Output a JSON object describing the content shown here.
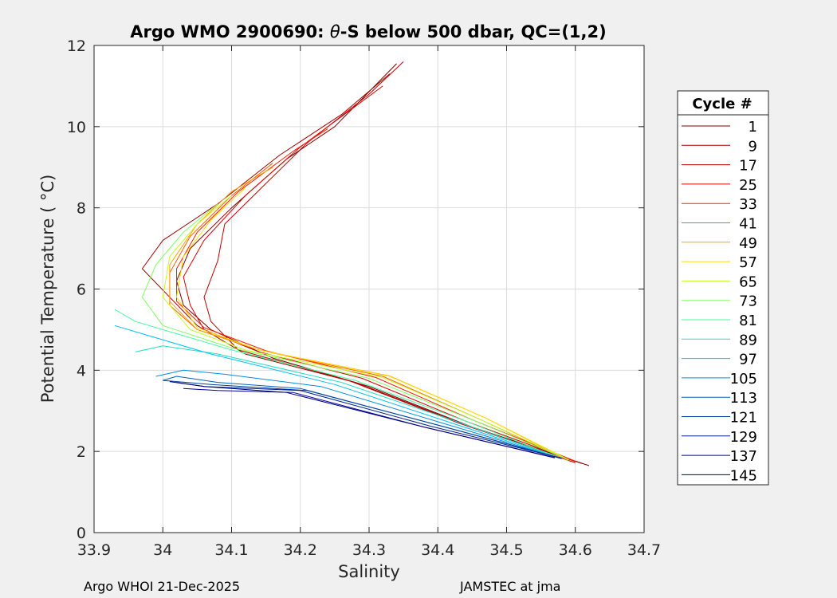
{
  "chart_data": {
    "type": "line",
    "title_prefix": "Argo WMO 2900690: ",
    "title_symbol": "θ",
    "title_suffix": "-S below 500 dbar,  QC=(1,2)",
    "xlabel": "Salinity",
    "ylabel": "Potential Temperature ( °C)",
    "xlim": [
      33.9,
      34.7
    ],
    "ylim": [
      0,
      12
    ],
    "xticks": [
      33.9,
      34.0,
      34.1,
      34.2,
      34.3,
      34.4,
      34.5,
      34.6,
      34.7
    ],
    "xtick_labels": [
      "33.9",
      "34",
      "34.1",
      "34.2",
      "34.3",
      "34.4",
      "34.5",
      "34.6",
      "34.7"
    ],
    "yticks": [
      0,
      2,
      4,
      6,
      8,
      10,
      12
    ],
    "ytick_labels": [
      "0",
      "2",
      "4",
      "6",
      "8",
      "10",
      "12"
    ],
    "grid": true,
    "legend_title": "Cycle #",
    "legend_position": "right-outside",
    "legend_entries": [
      {
        "label": "1",
        "color": "#800000"
      },
      {
        "label": "9",
        "color": "#a00000"
      },
      {
        "label": "17",
        "color": "#c00000"
      },
      {
        "label": "25",
        "color": "#e00000"
      },
      {
        "label": "33",
        "color": "#ff2000"
      },
      {
        "label": "41",
        "color": "#ff6000"
      },
      {
        "label": "49",
        "color": "#ffa000"
      },
      {
        "label": "57",
        "color": "#ffe000"
      },
      {
        "label": "65",
        "color": "#c0ff20"
      },
      {
        "label": "73",
        "color": "#80ff60"
      },
      {
        "label": "81",
        "color": "#40ffa0"
      },
      {
        "label": "89",
        "color": "#20e0c0"
      },
      {
        "label": "97",
        "color": "#00c0ff"
      },
      {
        "label": "105",
        "color": "#0090e0"
      },
      {
        "label": "113",
        "color": "#0060c0"
      },
      {
        "label": "121",
        "color": "#0040a0"
      },
      {
        "label": "129",
        "color": "#002090"
      },
      {
        "label": "137",
        "color": "#0000a0"
      },
      {
        "label": "145",
        "color": "#000080"
      }
    ],
    "series": [
      {
        "cycle": 1,
        "color": "#800000",
        "points": [
          [
            34.62,
            1.65
          ],
          [
            34.45,
            2.6
          ],
          [
            34.3,
            3.6
          ],
          [
            34.16,
            4.3
          ],
          [
            34.07,
            5.0
          ],
          [
            34.03,
            5.6
          ],
          [
            34.02,
            6.2
          ],
          [
            34.04,
            7.0
          ],
          [
            34.1,
            8.0
          ],
          [
            34.18,
            9.2
          ],
          [
            34.25,
            10.0
          ],
          [
            34.34,
            11.55
          ]
        ]
      },
      {
        "cycle": 9,
        "color": "#a00000",
        "points": [
          [
            34.61,
            1.7
          ],
          [
            34.44,
            2.65
          ],
          [
            34.28,
            3.7
          ],
          [
            34.12,
            4.4
          ],
          [
            34.05,
            5.1
          ],
          [
            34.01,
            5.8
          ],
          [
            33.97,
            6.5
          ],
          [
            34.0,
            7.2
          ],
          [
            34.08,
            8.1
          ],
          [
            34.17,
            9.3
          ],
          [
            34.26,
            10.3
          ],
          [
            34.33,
            11.3
          ]
        ]
      },
      {
        "cycle": 17,
        "color": "#c00000",
        "points": [
          [
            34.6,
            1.72
          ],
          [
            34.43,
            2.7
          ],
          [
            34.27,
            3.75
          ],
          [
            34.11,
            4.5
          ],
          [
            34.07,
            5.2
          ],
          [
            34.06,
            5.8
          ],
          [
            34.08,
            6.7
          ],
          [
            34.09,
            7.6
          ],
          [
            34.15,
            8.6
          ],
          [
            34.21,
            9.6
          ],
          [
            34.3,
            10.8
          ],
          [
            34.35,
            11.6
          ]
        ]
      },
      {
        "cycle": 25,
        "color": "#e00000",
        "points": [
          [
            34.6,
            1.75
          ],
          [
            34.44,
            2.75
          ],
          [
            34.29,
            3.8
          ],
          [
            34.14,
            4.45
          ],
          [
            34.06,
            5.0
          ],
          [
            34.04,
            5.6
          ],
          [
            34.03,
            6.3
          ],
          [
            34.06,
            7.2
          ],
          [
            34.12,
            8.3
          ],
          [
            34.2,
            9.5
          ],
          [
            34.28,
            10.5
          ],
          [
            34.32,
            11.0
          ]
        ]
      },
      {
        "cycle": 33,
        "color": "#ff2000",
        "points": [
          [
            34.6,
            1.76
          ],
          [
            34.45,
            2.78
          ],
          [
            34.31,
            3.82
          ],
          [
            34.15,
            4.48
          ],
          [
            34.06,
            5.05
          ],
          [
            34.02,
            5.7
          ],
          [
            34.02,
            6.5
          ],
          [
            34.05,
            7.4
          ],
          [
            34.11,
            8.4
          ],
          [
            34.19,
            9.4
          ],
          [
            34.24,
            9.95
          ]
        ]
      },
      {
        "cycle": 41,
        "color": "#ff6000",
        "points": [
          [
            34.59,
            1.78
          ],
          [
            34.46,
            2.8
          ],
          [
            34.32,
            3.85
          ],
          [
            34.14,
            4.5
          ],
          [
            34.05,
            5.0
          ],
          [
            34.01,
            5.6
          ],
          [
            34.01,
            6.4
          ],
          [
            34.04,
            7.3
          ],
          [
            34.1,
            8.3
          ],
          [
            34.16,
            9.1
          ]
        ]
      },
      {
        "cycle": 49,
        "color": "#ffa000",
        "points": [
          [
            34.59,
            1.78
          ],
          [
            34.47,
            2.82
          ],
          [
            34.33,
            3.86
          ],
          [
            34.14,
            4.5
          ],
          [
            34.05,
            5.0
          ],
          [
            34.01,
            5.7
          ],
          [
            34.01,
            6.6
          ],
          [
            34.05,
            7.6
          ],
          [
            34.1,
            8.4
          ],
          [
            34.16,
            9.0
          ]
        ]
      },
      {
        "cycle": 57,
        "color": "#ffe000",
        "points": [
          [
            34.59,
            1.8
          ],
          [
            34.47,
            2.82
          ],
          [
            34.33,
            3.85
          ],
          [
            34.14,
            4.5
          ],
          [
            34.05,
            5.05
          ],
          [
            34.02,
            5.8
          ],
          [
            34.03,
            6.8
          ],
          [
            34.07,
            7.7
          ],
          [
            34.12,
            8.5
          ]
        ]
      },
      {
        "cycle": 65,
        "color": "#c0ff20",
        "points": [
          [
            34.59,
            1.8
          ],
          [
            34.46,
            2.8
          ],
          [
            34.32,
            3.82
          ],
          [
            34.12,
            4.5
          ],
          [
            34.04,
            5.0
          ],
          [
            34.0,
            5.8
          ],
          [
            34.01,
            6.8
          ],
          [
            34.05,
            7.6
          ],
          [
            34.1,
            8.3
          ]
        ]
      },
      {
        "cycle": 73,
        "color": "#80ff60",
        "points": [
          [
            34.59,
            1.8
          ],
          [
            34.45,
            2.78
          ],
          [
            34.3,
            3.8
          ],
          [
            34.1,
            4.55
          ],
          [
            34.0,
            5.1
          ],
          [
            33.97,
            5.8
          ],
          [
            33.99,
            6.6
          ],
          [
            34.03,
            7.4
          ],
          [
            34.08,
            8.1
          ]
        ]
      },
      {
        "cycle": 81,
        "color": "#40ffa0",
        "points": [
          [
            34.58,
            1.82
          ],
          [
            34.44,
            2.75
          ],
          [
            34.28,
            3.75
          ],
          [
            34.1,
            4.5
          ],
          [
            34.02,
            4.9
          ],
          [
            33.96,
            5.2
          ],
          [
            33.93,
            5.5
          ]
        ]
      },
      {
        "cycle": 89,
        "color": "#20e0c0",
        "points": [
          [
            34.58,
            1.82
          ],
          [
            34.43,
            2.72
          ],
          [
            34.26,
            3.7
          ],
          [
            34.08,
            4.4
          ],
          [
            34.0,
            4.6
          ],
          [
            33.96,
            4.45
          ]
        ]
      },
      {
        "cycle": 97,
        "color": "#00c0ff",
        "points": [
          [
            34.58,
            1.82
          ],
          [
            34.42,
            2.7
          ],
          [
            34.25,
            3.65
          ],
          [
            34.07,
            4.4
          ],
          [
            33.98,
            4.85
          ],
          [
            33.93,
            5.1
          ]
        ]
      },
      {
        "cycle": 105,
        "color": "#0090e0",
        "points": [
          [
            34.58,
            1.82
          ],
          [
            34.41,
            2.68
          ],
          [
            34.23,
            3.6
          ],
          [
            34.09,
            3.9
          ],
          [
            34.03,
            4.0
          ],
          [
            33.99,
            3.85
          ]
        ]
      },
      {
        "cycle": 113,
        "color": "#0060c0",
        "points": [
          [
            34.58,
            1.82
          ],
          [
            34.4,
            2.65
          ],
          [
            34.2,
            3.55
          ],
          [
            34.08,
            3.7
          ],
          [
            34.02,
            3.85
          ],
          [
            34.0,
            3.75
          ]
        ]
      },
      {
        "cycle": 121,
        "color": "#0040a0",
        "points": [
          [
            34.58,
            1.83
          ],
          [
            34.4,
            2.65
          ],
          [
            34.21,
            3.5
          ],
          [
            34.07,
            3.65
          ],
          [
            34.0,
            3.75
          ]
        ]
      },
      {
        "cycle": 129,
        "color": "#002090",
        "points": [
          [
            34.58,
            1.83
          ],
          [
            34.39,
            2.62
          ],
          [
            34.2,
            3.5
          ],
          [
            34.06,
            3.6
          ],
          [
            34.02,
            3.7
          ]
        ]
      },
      {
        "cycle": 137,
        "color": "#0000a0",
        "points": [
          [
            34.57,
            1.84
          ],
          [
            34.38,
            2.6
          ],
          [
            34.19,
            3.45
          ],
          [
            34.08,
            3.5
          ],
          [
            34.03,
            3.55
          ]
        ]
      },
      {
        "cycle": 145,
        "color": "#000080",
        "points": [
          [
            34.57,
            1.85
          ],
          [
            34.38,
            2.6
          ],
          [
            34.18,
            3.45
          ],
          [
            34.06,
            3.6
          ],
          [
            34.01,
            3.72
          ]
        ]
      }
    ]
  },
  "footer": {
    "left": "Argo WHOI 21-Dec-2025",
    "right": "JAMSTEC at jma"
  }
}
